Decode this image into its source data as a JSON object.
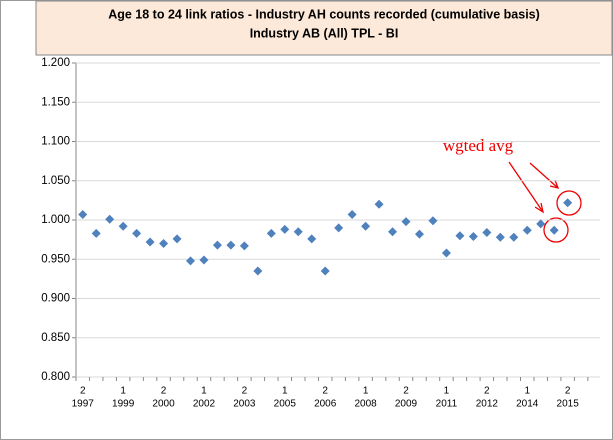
{
  "chart_data": {
    "type": "scatter",
    "title": "Age 18 to 24 link ratios - Industry AH counts recorded (cumulative basis)",
    "subtitle": "Industry AB (All) TPL - BI",
    "annotation": "wgted avg",
    "categories": [
      "2",
      null,
      null,
      "1",
      null,
      null,
      "2",
      null,
      null,
      "1",
      null,
      null,
      "2",
      null,
      null,
      "1",
      null,
      null,
      "2",
      null,
      null,
      "1",
      null,
      null,
      "2",
      null,
      null,
      "1",
      null,
      null,
      "2",
      null,
      null,
      "1",
      null,
      null,
      "2"
    ],
    "category_years": [
      "1997",
      null,
      null,
      "1999",
      null,
      null,
      "2000",
      null,
      null,
      "2002",
      null,
      null,
      "2003",
      null,
      null,
      "2005",
      null,
      null,
      "2006",
      null,
      null,
      "2008",
      null,
      null,
      "2009",
      null,
      null,
      "2011",
      null,
      null,
      "2012",
      null,
      null,
      "2014",
      null,
      null,
      "2015"
    ],
    "values": [
      1.007,
      0.983,
      1.001,
      0.992,
      0.983,
      0.972,
      0.97,
      0.976,
      0.948,
      0.949,
      0.968,
      0.968,
      0.967,
      0.935,
      0.983,
      0.988,
      0.985,
      0.976,
      0.935,
      0.99,
      1.007,
      0.992,
      1.02,
      0.985,
      0.998,
      0.982,
      0.999,
      0.958,
      0.98,
      0.979,
      0.984,
      0.978,
      0.978,
      0.987,
      0.995,
      0.987,
      1.022
    ],
    "color": "#4f81bd",
    "ylim": [
      0.8,
      1.2
    ],
    "yticks": [
      {
        "value": 0.8,
        "label": "0.800"
      },
      {
        "value": 0.85,
        "label": "0.850"
      },
      {
        "value": 0.9,
        "label": "0.900"
      },
      {
        "value": 0.95,
        "label": "0.950"
      },
      {
        "value": 1.0,
        "label": "1.000"
      },
      {
        "value": 1.05,
        "label": "1.050"
      },
      {
        "value": 1.1,
        "label": "1.100"
      },
      {
        "value": 1.15,
        "label": "1.150"
      },
      {
        "value": 1.2,
        "label": "1.200"
      }
    ],
    "grid": true
  }
}
